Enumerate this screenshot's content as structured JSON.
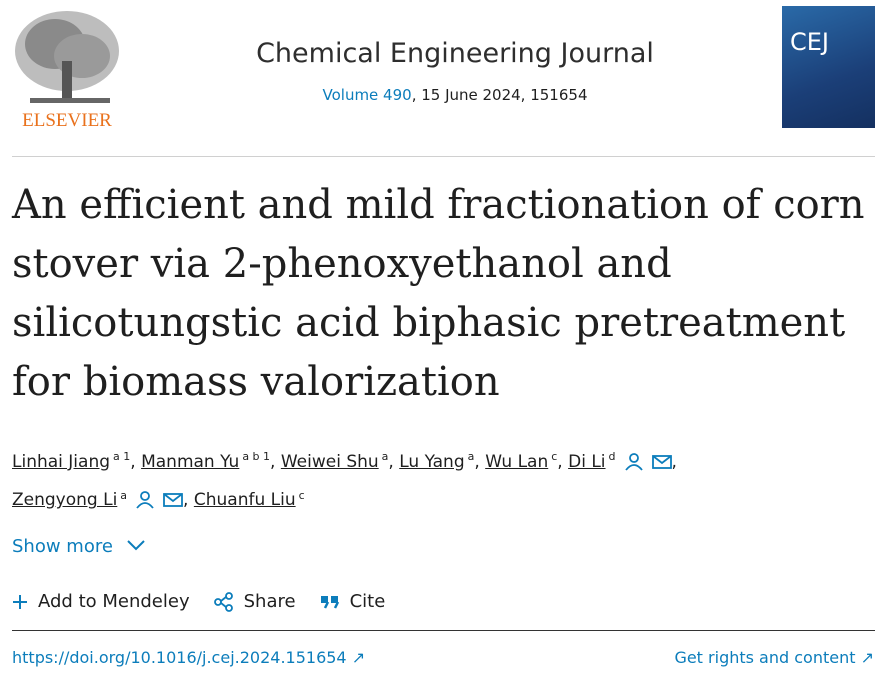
{
  "header": {
    "publisher": "ELSEVIER",
    "journal": "Chemical Engineering Journal",
    "volume": "Volume 490",
    "issue_info": ", 15 June 2024, 151654",
    "cover_text": "CEJ"
  },
  "article": {
    "title": "An efficient and mild fractionation of corn stover via 2-phenoxyethanol and silicotungstic acid biphasic pretreatment for biomass valorization",
    "separator": ",",
    "authors": [
      {
        "name": "Linhai Jiang",
        "sup": "a 1"
      },
      {
        "name": "Manman Yu",
        "sup": "a b 1"
      },
      {
        "name": "Weiwei Shu",
        "sup": "a"
      },
      {
        "name": "Lu Yang",
        "sup": "a"
      },
      {
        "name": "Wu Lan",
        "sup": "c"
      },
      {
        "name": "Di Li",
        "sup": "d",
        "contact": true
      },
      {
        "name": "Zengyong Li",
        "sup": "a",
        "contact": true
      },
      {
        "name": "Chuanfu Liu",
        "sup": "c"
      }
    ],
    "show_more": "Show more",
    "actions": [
      "Add to Mendeley",
      "Share",
      "Cite"
    ],
    "doi": "https://doi.org/10.1016/j.cej.2024.151654",
    "rights": "Get rights and content"
  }
}
